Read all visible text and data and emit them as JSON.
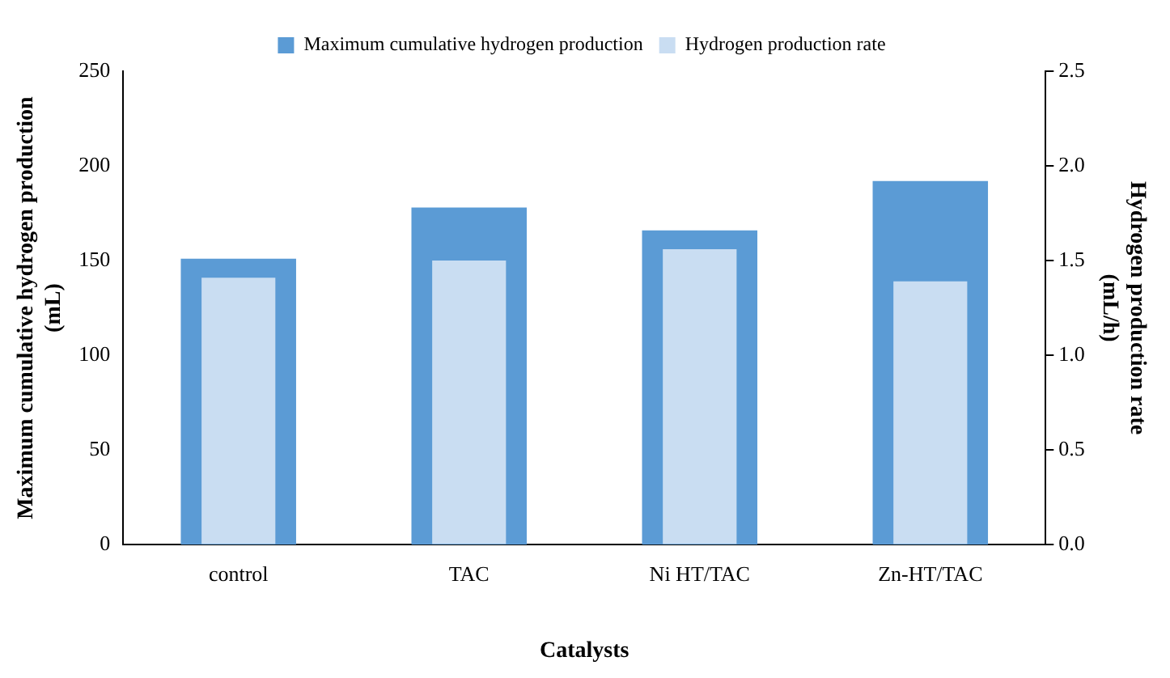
{
  "chart_data": {
    "type": "bar",
    "xlabel": "Catalysts",
    "ylabel": "Maximum cumulative hydrogen production (mL)",
    "y2label": "Hydrogen production rate (mL/h)",
    "categories": [
      "control",
      "TAC",
      "Ni HT/TAC",
      "Zn-HT/TAC"
    ],
    "series": [
      {
        "name": "Maximum cumulative hydrogen production",
        "color": "#5b9bd5",
        "values": [
          151,
          178,
          166,
          192
        ]
      },
      {
        "name": "Hydrogen production rate",
        "color": "#c9ddf2",
        "axis": "y2",
        "values": [
          1.41,
          1.5,
          1.56,
          1.39
        ]
      }
    ],
    "ylim": [
      0,
      250
    ],
    "yticks": [
      0,
      50,
      100,
      150,
      200,
      250
    ],
    "y2lim": [
      0,
      2.5
    ],
    "y2ticks": [
      {
        "value": 0,
        "label": "0.0"
      },
      0.5,
      {
        "value": 1,
        "label": "1.0"
      },
      1.5,
      {
        "value": 2,
        "label": "2.0"
      },
      2.5
    ],
    "legend": "top",
    "grid": false
  }
}
